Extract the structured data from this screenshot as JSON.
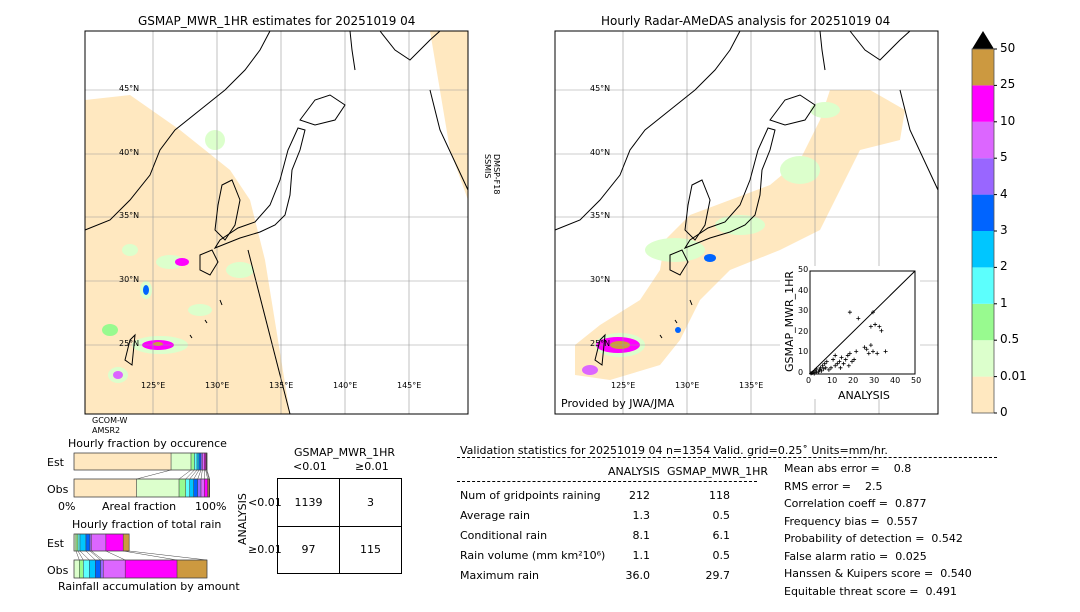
{
  "left_map": {
    "title": "GSMAP_MWR_1HR estimates for 20251019 04",
    "sensor_label_1": "DMSP-F18",
    "sensor_label_2": "SSMIS",
    "bottom_label_1": "GCOM-W",
    "bottom_label_2": "AMSR2"
  },
  "right_map": {
    "title": "Hourly Radar-AMeDAS analysis for 20251019 04",
    "credit": "Provided by JWA/JMA"
  },
  "lat_labels": [
    "45°N",
    "40°N",
    "35°N",
    "30°N",
    "25°N"
  ],
  "lon_labels": [
    "125°E",
    "130°E",
    "135°E",
    "140°E",
    "145°E"
  ],
  "colorbar": {
    "ticks": [
      "0",
      "0.01",
      "0.5",
      "1",
      "2",
      "3",
      "4",
      "5",
      "10",
      "25",
      "50"
    ],
    "colors": [
      "#ffe8c0",
      "#dcffcc",
      "#98fa8f",
      "#5cfffd",
      "#00c6ff",
      "#0064ff",
      "#9966ff",
      "#dc66ff",
      "#ff00ff",
      "#cc9940"
    ],
    "extend_color": "#000000"
  },
  "chart_data": [
    {
      "type": "scatter",
      "xlabel": "ANALYSIS",
      "ylabel": "GSMAP_MWR_1HR",
      "xlim": [
        0,
        50
      ],
      "ylim": [
        0,
        50
      ],
      "xticks": [
        "0",
        "10",
        "20",
        "30",
        "40",
        "50"
      ],
      "yticks": [
        "0",
        "10",
        "20",
        "30",
        "40",
        "50"
      ],
      "points": [
        [
          0.5,
          0.3
        ],
        [
          1,
          0.5
        ],
        [
          1.5,
          1
        ],
        [
          2,
          0.2
        ],
        [
          2.5,
          1.5
        ],
        [
          3,
          0.8
        ],
        [
          3,
          2.5
        ],
        [
          4,
          1
        ],
        [
          4.5,
          2
        ],
        [
          5,
          3
        ],
        [
          5.5,
          1.5
        ],
        [
          6,
          4
        ],
        [
          6.5,
          2.5
        ],
        [
          7,
          5
        ],
        [
          7.5,
          3
        ],
        [
          8,
          6
        ],
        [
          9,
          2
        ],
        [
          10,
          3
        ],
        [
          11,
          7
        ],
        [
          12,
          4
        ],
        [
          12,
          9
        ],
        [
          13,
          5
        ],
        [
          14,
          6
        ],
        [
          14.5,
          3
        ],
        [
          15,
          8
        ],
        [
          16,
          5
        ],
        [
          17,
          7
        ],
        [
          18,
          9
        ],
        [
          18.5,
          4
        ],
        [
          19,
          10
        ],
        [
          19,
          30
        ],
        [
          20,
          6
        ],
        [
          21,
          7
        ],
        [
          22,
          11
        ],
        [
          23,
          27
        ],
        [
          26,
          13
        ],
        [
          27,
          12
        ],
        [
          28,
          10
        ],
        [
          29,
          14
        ],
        [
          29,
          23
        ],
        [
          30,
          30
        ],
        [
          30,
          11
        ],
        [
          31,
          24
        ],
        [
          32,
          10
        ],
        [
          33,
          23
        ],
        [
          34,
          21
        ],
        [
          36,
          11
        ]
      ]
    },
    {
      "type": "bar",
      "title": "Hourly fraction by occurence",
      "xlabel": "Areal fraction",
      "xtick_left": "0%",
      "xtick_right": "100%",
      "categories": [
        "Est",
        "Obs"
      ],
      "segments_percent": {
        "Est": [
          73,
          15,
          2.5,
          2,
          1.5,
          1.5,
          1,
          1.5,
          1,
          0.5,
          0.5
        ],
        "Obs": [
          47,
          32,
          5,
          3,
          3,
          3,
          2.5,
          2.5,
          2.5,
          1,
          0.5
        ]
      }
    },
    {
      "type": "bar",
      "title": "Hourly fraction of total rain",
      "xlabel": "Rainfall accumulation by amount",
      "categories": [
        "Est",
        "Obs"
      ],
      "segments_percent": {
        "Est": [
          1.5,
          1.5,
          1.5,
          4.5,
          3,
          1,
          11,
          13,
          4.5
        ],
        "Obs": [
          4,
          3,
          4.5,
          4.5,
          4,
          2,
          16.5,
          39,
          22.5
        ]
      }
    }
  ],
  "contingency": {
    "col_title": "GSMAP_MWR_1HR",
    "row_title": "ANALYSIS",
    "col_labels": [
      "<0.01",
      "≥0.01"
    ],
    "row_labels": [
      "<0.01",
      "≥0.01"
    ],
    "cells": [
      [
        "1139",
        "3"
      ],
      [
        "97",
        "115"
      ]
    ]
  },
  "stats": {
    "header": "Validation statistics for 20251019 04  n=1354 Valid. grid=0.25˚ Units=mm/hr.",
    "col_analysis": "ANALYSIS",
    "col_gsmap": "GSMAP_MWR_1HR",
    "rows": [
      {
        "label": "Num of gridpoints raining",
        "analysis": "212",
        "gsmap": "118"
      },
      {
        "label": "Average rain",
        "analysis": "1.3",
        "gsmap": "0.5"
      },
      {
        "label": "Conditional rain",
        "analysis": "8.1",
        "gsmap": "6.1"
      },
      {
        "label": "Rain volume (mm km²10⁶)",
        "analysis": "1.1",
        "gsmap": "0.5"
      },
      {
        "label": "Maximum rain",
        "analysis": "36.0",
        "gsmap": "29.7"
      }
    ],
    "scores": [
      "Mean abs error =    0.8",
      "RMS error =    2.5",
      "Correlation coeff =  0.877",
      "Frequency bias =  0.557",
      "Probability of detection =  0.542",
      "False alarm ratio =  0.025",
      "Hanssen & Kuipers score =  0.540",
      "Equitable threat score =  0.491"
    ]
  }
}
